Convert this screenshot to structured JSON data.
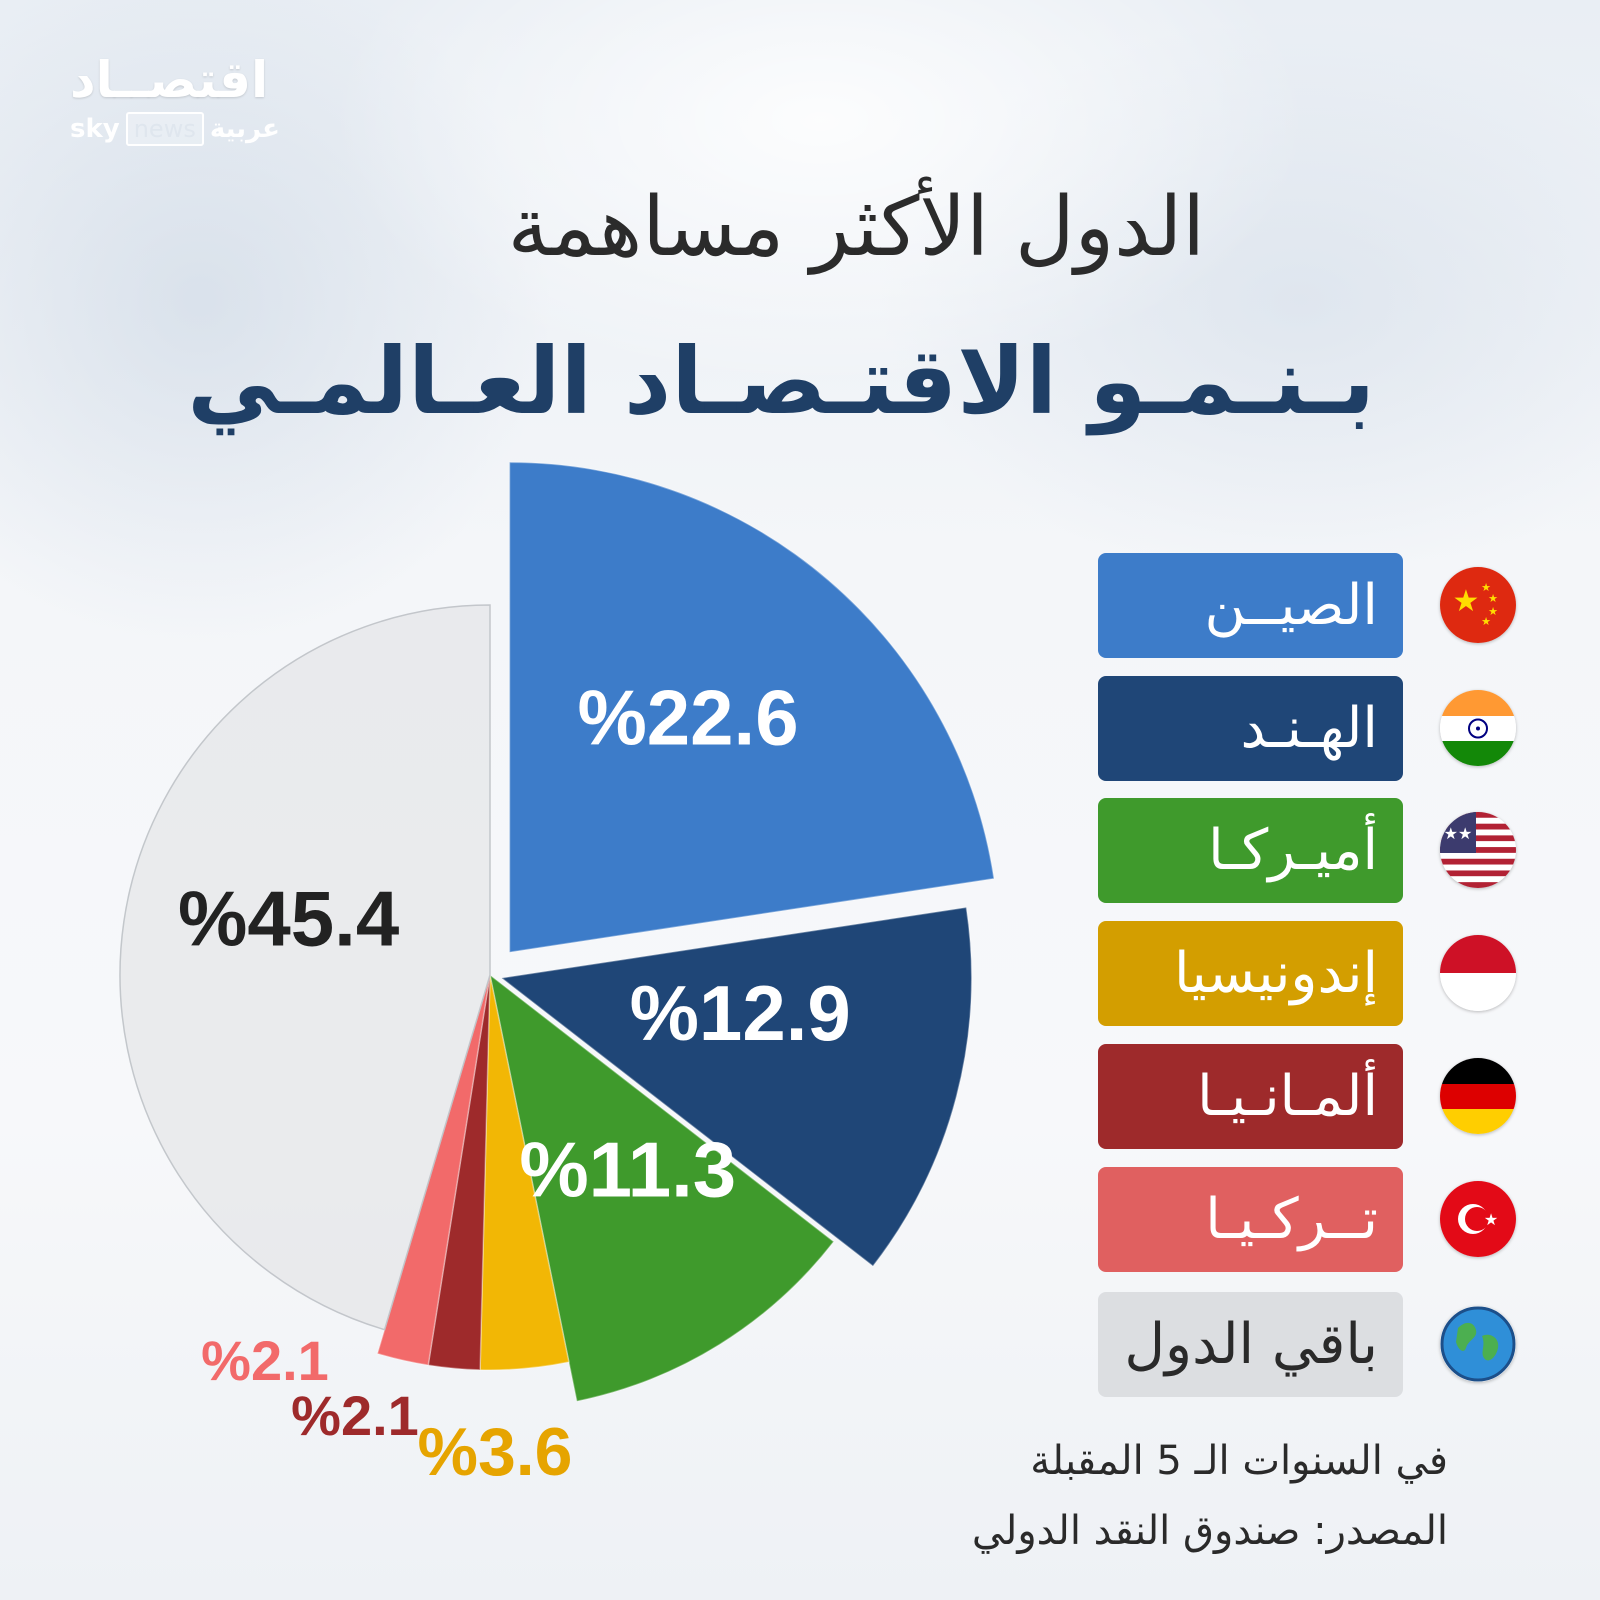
{
  "logo": {
    "arabic": "اقتصــاد",
    "sky": "sky",
    "news": "news",
    "arabic_sub": "عربية"
  },
  "title_line1": "الدول الأكثر مساهمة",
  "title_line2": "بـنـمـو الاقتـصـاد العـالمـي",
  "chart_data": {
    "type": "pie",
    "unit": "%",
    "slices": [
      {
        "label": "الصيــن",
        "value": 22.6,
        "value_label": "%22.6",
        "color": "#3d7cc9",
        "label_color": "#ffffff",
        "flag": "china-flag-icon"
      },
      {
        "label": "الهـنـد",
        "value": 12.9,
        "value_label": "%12.9",
        "color": "#1f4677",
        "label_color": "#ffffff",
        "flag": "india-flag-icon"
      },
      {
        "label": "أميـركـا",
        "value": 11.3,
        "value_label": "%11.3",
        "color": "#3f9a2c",
        "label_color": "#ffffff",
        "flag": "usa-flag-icon"
      },
      {
        "label": "إندونيسيا",
        "value": 3.6,
        "value_label": "%3.6",
        "color": "#f2b705",
        "label_color": "#e6a400",
        "flag": "indonesia-flag-icon"
      },
      {
        "label": "ألمـانـيـا",
        "value": 2.1,
        "value_label": "%2.1",
        "color": "#9e2a2b",
        "label_color": "#9e2a2b",
        "flag": "germany-flag-icon"
      },
      {
        "label": "تــركـيـا",
        "value": 2.1,
        "value_label": "%2.1",
        "color": "#f26a6a",
        "label_color": "#f26a6a",
        "flag": "turkey-flag-icon"
      },
      {
        "label": "باقي الدول",
        "value": 45.4,
        "value_label": "%45.4",
        "color": "#e9eaec",
        "label_color": "#222222",
        "flag": "globe-icon"
      }
    ],
    "legend_colors": [
      "#3d7cc9",
      "#1f4677",
      "#3f9a2c",
      "#d39e00",
      "#9e2a2b",
      "#e06060",
      "#dcdee1"
    ],
    "legend_text_colors": [
      "#ffffff",
      "#ffffff",
      "#ffffff",
      "#ffffff",
      "#ffffff",
      "#ffffff",
      "#2a2a2a"
    ]
  },
  "footnote": "في السنوات الـ 5 المقبلة",
  "source": "المصدر: صندوق النقد الدولي"
}
